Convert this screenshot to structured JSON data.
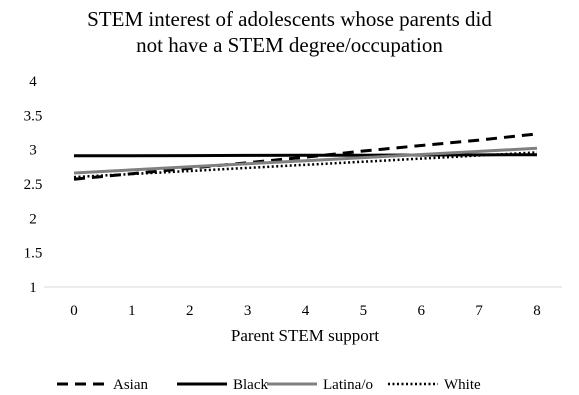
{
  "chart_data": {
    "type": "line",
    "title_lines": [
      "STEM interest of adolescents whose parents did",
      "not have a STEM degree/occupation"
    ],
    "xlabel": "Parent STEM support",
    "ylabel": "",
    "x": [
      0,
      1,
      2,
      3,
      4,
      5,
      6,
      7,
      8
    ],
    "x_ticks": [
      "0",
      "1",
      "2",
      "3",
      "4",
      "5",
      "6",
      "7",
      "8"
    ],
    "y_ticks": [
      "1",
      "1.5",
      "2",
      "2.5",
      "3",
      "3.5",
      "4"
    ],
    "xlim": [
      0,
      8
    ],
    "ylim": [
      1,
      4
    ],
    "grid": false,
    "legend_position": "bottom",
    "series": [
      {
        "name": "Asian",
        "values": [
          2.57,
          2.65,
          2.73,
          2.81,
          2.89,
          2.98,
          3.06,
          3.14,
          3.23
        ],
        "color": "#000000",
        "style": "dashed"
      },
      {
        "name": "Black",
        "values": [
          2.91,
          2.912,
          2.914,
          2.916,
          2.918,
          2.92,
          2.922,
          2.924,
          2.926
        ],
        "color": "#000000",
        "style": "solid"
      },
      {
        "name": "Latina/o",
        "values": [
          2.66,
          2.705,
          2.75,
          2.795,
          2.84,
          2.885,
          2.93,
          2.975,
          3.02
        ],
        "color": "#808080",
        "style": "solid"
      },
      {
        "name": "White",
        "values": [
          2.6,
          2.645,
          2.69,
          2.735,
          2.78,
          2.825,
          2.87,
          2.915,
          2.96
        ],
        "color": "#000000",
        "style": "dotted"
      }
    ]
  }
}
